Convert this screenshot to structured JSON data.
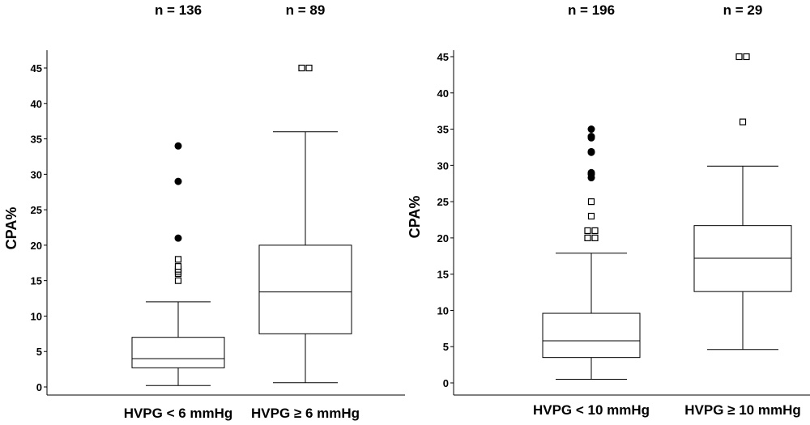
{
  "chart_data": [
    {
      "type": "box",
      "ylabel": "CPA%",
      "ylim": [
        0,
        45
      ],
      "yticks": [
        0,
        5,
        10,
        15,
        20,
        25,
        30,
        35,
        40,
        45
      ],
      "categories": [
        "HVPG < 6 mmHg",
        "HVPG ≥ 6 mmHg"
      ],
      "n_labels": [
        "n = 136",
        "n = 89"
      ],
      "boxes": [
        {
          "min": 0.2,
          "q1": 2.7,
          "median": 4.0,
          "q3": 7.0,
          "max": 12.0,
          "extreme_outliers": [
            21.0,
            29.0,
            34.0
          ],
          "outliers": [
            15.0,
            16.0,
            16.3,
            16.6,
            17.0,
            18.0
          ]
        },
        {
          "min": 0.6,
          "q1": 7.5,
          "median": 13.4,
          "q3": 20.0,
          "max": 36.0,
          "extreme_outliers": [],
          "outliers": [
            45.0,
            45.0
          ]
        }
      ]
    },
    {
      "type": "box",
      "ylabel": "CPA%",
      "ylim": [
        0,
        45
      ],
      "yticks": [
        0,
        5,
        10,
        15,
        20,
        25,
        30,
        35,
        40,
        45
      ],
      "categories": [
        "HVPG < 10 mmHg",
        "HVPG ≥ 10 mmHg"
      ],
      "n_labels": [
        "n = 196",
        "n = 29"
      ],
      "boxes": [
        {
          "min": 0.5,
          "q1": 3.5,
          "median": 5.8,
          "q3": 9.6,
          "max": 17.9,
          "extreme_outliers": [
            28.3,
            28.8,
            29.0,
            31.8,
            31.9,
            33.8,
            34.0,
            35.0
          ],
          "outliers": [
            20.0,
            20.0,
            21.0,
            21.0,
            23.0,
            25.0
          ]
        },
        {
          "min": 4.6,
          "q1": 12.6,
          "median": 17.2,
          "q3": 21.7,
          "max": 29.9,
          "extreme_outliers": [],
          "outliers": [
            36.0,
            45.0,
            45.0
          ]
        }
      ]
    }
  ]
}
